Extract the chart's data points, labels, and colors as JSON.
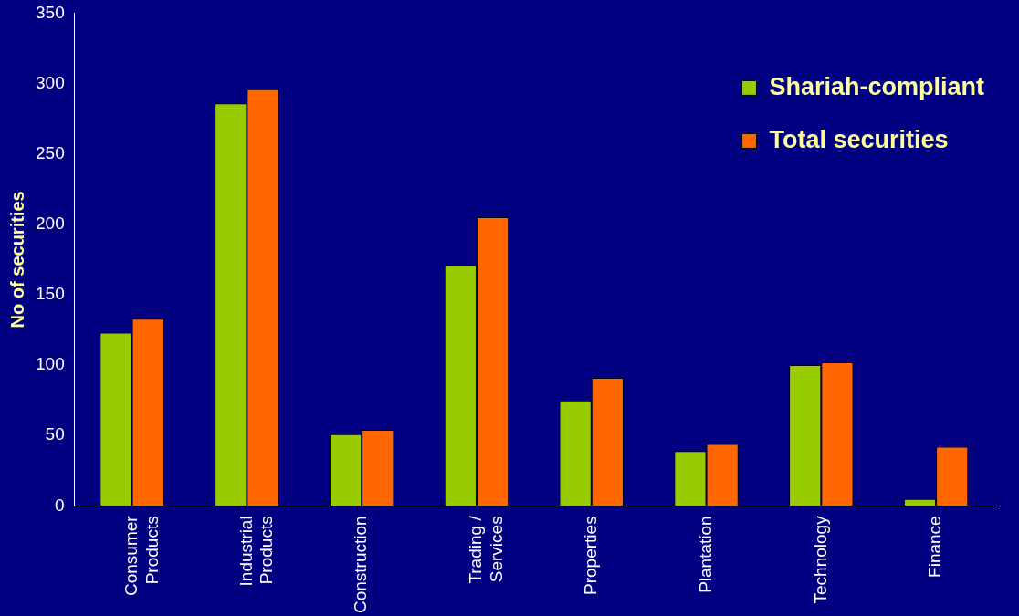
{
  "chart_data": {
    "type": "bar",
    "ylabel": "No of securities",
    "categories": [
      "Consumer\nProducts",
      "Industrial\nProducts",
      "Construction",
      "Trading /\nServices",
      "Properties",
      "Plantation",
      "Technology",
      "Finance"
    ],
    "series": [
      {
        "name": "Shariah-compliant",
        "color": "#99cc00",
        "values": [
          123,
          286,
          51,
          171,
          75,
          39,
          100,
          5
        ]
      },
      {
        "name": "Total securities",
        "color": "#ff6600",
        "values": [
          133,
          296,
          54,
          205,
          91,
          44,
          102,
          42
        ]
      }
    ],
    "ylim": [
      0,
      350
    ],
    "yticks": [
      0,
      50,
      100,
      150,
      200,
      250,
      300,
      350
    ],
    "grid": false,
    "legend": "top right"
  }
}
